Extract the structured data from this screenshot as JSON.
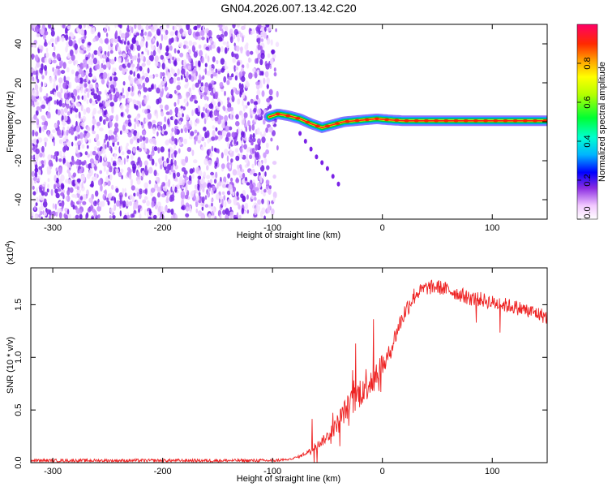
{
  "title": "GN04.2026.007.13.42.C20",
  "colors": {
    "snr_line": "#ee2222",
    "noise": "#6a14e0",
    "ridge": "#00cc33",
    "ridge_core": "#ff1a1a"
  },
  "chart_data": [
    {
      "type": "heatmap",
      "name": "spectrogram",
      "xlabel": "Height of straight line (km)",
      "ylabel": "Frequency (Hz)",
      "xlim": [
        -320,
        150
      ],
      "ylim": [
        -50,
        50
      ],
      "x_ticks": [
        -300,
        -200,
        -100,
        0,
        100
      ],
      "y_ticks": [
        -40,
        -20,
        0,
        20,
        40
      ],
      "x_tick_labels": [
        "-300",
        "-200",
        "-100",
        "0",
        "100"
      ],
      "y_tick_labels": [
        "-40",
        "-20",
        "0",
        "20",
        "40"
      ],
      "noise_region_x": [
        -320,
        -95
      ],
      "ridge": {
        "x": [
          -103,
          -95,
          -85,
          -75,
          -65,
          -55,
          -45,
          -35,
          -25,
          -15,
          -5,
          5,
          20,
          40,
          60,
          80,
          100,
          120,
          150
        ],
        "y": [
          2.5,
          4,
          3,
          1.5,
          -1,
          -3,
          -1.5,
          0,
          0.5,
          1,
          1.5,
          1,
          0.5,
          0.5,
          0.5,
          0.5,
          0.5,
          0.5,
          0.5
        ]
      },
      "branch": {
        "x": [
          -75,
          -70,
          -65,
          -60,
          -55,
          -50,
          -45,
          -40
        ],
        "y": [
          -6,
          -10,
          -14,
          -18,
          -21,
          -24,
          -28,
          -32
        ]
      },
      "grid": false,
      "colorbar": {
        "label": "Normalized spectral amplitude",
        "ticks": [
          0.0,
          0.2,
          0.4,
          0.6,
          0.8
        ],
        "tick_labels": [
          "0.0",
          "0.2",
          "0.4",
          "0.6",
          "0.8"
        ],
        "range": [
          0,
          1
        ]
      }
    },
    {
      "type": "line",
      "name": "snr",
      "xlabel": "Height of straight line (km)",
      "ylabel": "SNR (10 * v/v)",
      "scale_label": "(x10",
      "scale_exp": "4",
      "xlim": [
        -320,
        150
      ],
      "ylim": [
        0,
        1.85
      ],
      "x_ticks": [
        -300,
        -200,
        -100,
        0,
        100
      ],
      "y_ticks": [
        0.0,
        0.5,
        1.0,
        1.5
      ],
      "x_tick_labels": [
        "-300",
        "-200",
        "-100",
        "0",
        "100"
      ],
      "y_tick_labels": [
        "0.0",
        "0.5",
        "1.0",
        "1.5"
      ],
      "grid": false,
      "series": [
        {
          "x": [
            -320,
            -250,
            -150,
            -100,
            -85,
            -75,
            -65,
            -55,
            -45,
            -40,
            -35,
            -30,
            -25,
            -20,
            -15,
            -10,
            -5,
            0,
            5,
            10,
            15,
            20,
            25,
            30,
            40,
            50,
            60,
            70,
            80,
            90,
            100,
            110,
            120,
            130,
            140,
            150
          ],
          "values": [
            0.02,
            0.02,
            0.02,
            0.02,
            0.03,
            0.06,
            0.12,
            0.2,
            0.3,
            0.4,
            0.48,
            0.55,
            0.6,
            0.68,
            0.75,
            0.8,
            0.85,
            0.9,
            1.0,
            1.15,
            1.3,
            1.42,
            1.52,
            1.6,
            1.66,
            1.67,
            1.64,
            1.6,
            1.56,
            1.55,
            1.52,
            1.5,
            1.48,
            1.45,
            1.42,
            1.38
          ]
        }
      ]
    }
  ]
}
